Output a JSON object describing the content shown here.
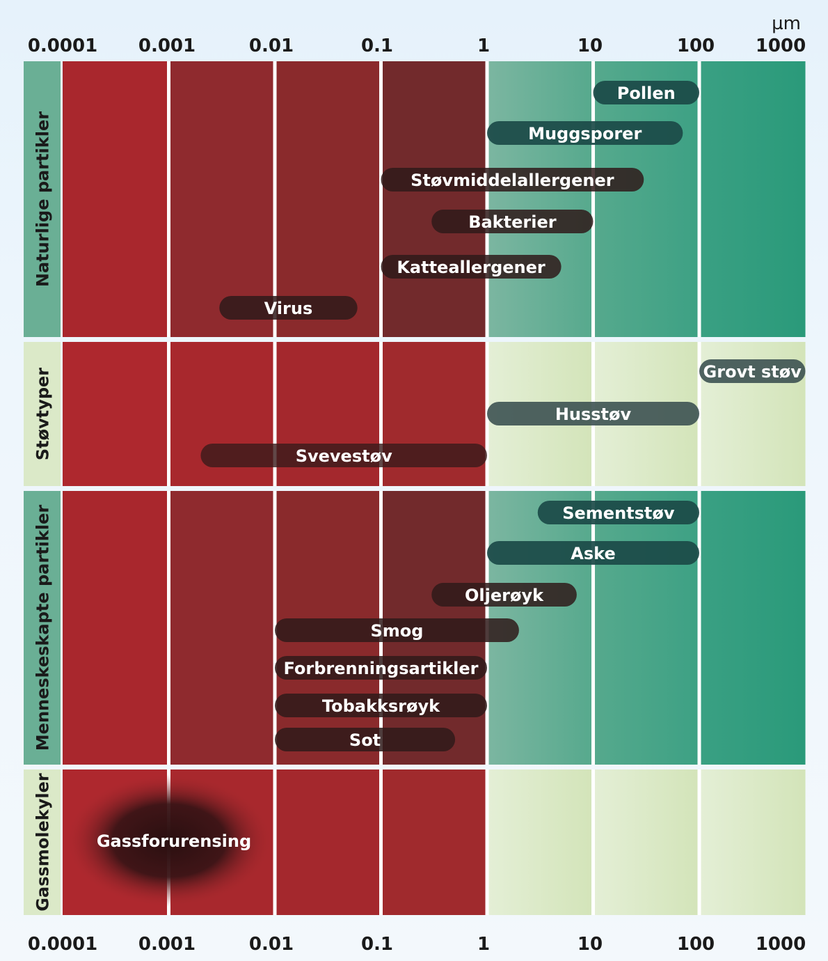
{
  "chart_data": {
    "type": "range-bar",
    "unit": "µm",
    "x_scale": "log",
    "x_ticks": [
      "0.0001",
      "0.001",
      "0.01",
      "0.1",
      "1",
      "10",
      "100",
      "1000"
    ],
    "xlim": [
      0.0001,
      1000
    ],
    "categories": [
      {
        "name": "Naturlige partikler",
        "items": [
          {
            "label": "Pollen",
            "min": 10,
            "max": 100
          },
          {
            "label": "Muggsporer",
            "min": 1,
            "max": 70
          },
          {
            "label": "Støvmiddelallergener",
            "min": 0.1,
            "max": 30
          },
          {
            "label": "Bakterier",
            "min": 0.3,
            "max": 10
          },
          {
            "label": "Katteallergener",
            "min": 0.1,
            "max": 5
          },
          {
            "label": "Virus",
            "min": 0.003,
            "max": 0.06
          }
        ]
      },
      {
        "name": "Støvtyper",
        "items": [
          {
            "label": "Grovt støv",
            "min": 100,
            "max": 1000
          },
          {
            "label": "Husstøv",
            "min": 1,
            "max": 100
          },
          {
            "label": "Svevestøv",
            "min": 0.002,
            "max": 1
          }
        ]
      },
      {
        "name": "Menneskeskapte partikler",
        "items": [
          {
            "label": "Sementstøv",
            "min": 3,
            "max": 100
          },
          {
            "label": "Aske",
            "min": 1,
            "max": 100
          },
          {
            "label": "Oljerøyk",
            "min": 0.3,
            "max": 7
          },
          {
            "label": "Smog",
            "min": 0.01,
            "max": 2
          },
          {
            "label": "Forbrenningsartikler",
            "min": 0.01,
            "max": 1
          },
          {
            "label": "Tobakksrøyk",
            "min": 0.01,
            "max": 1
          },
          {
            "label": "Sot",
            "min": 0.01,
            "max": 0.5
          }
        ]
      },
      {
        "name": "Gassmolekyler",
        "items": [
          {
            "label": "Gassforurensing",
            "min": 0.0001,
            "max": 0.01
          }
        ]
      }
    ],
    "colors": {
      "red": "#a8282d",
      "teal": "#2f9c7b",
      "light_green": "#dbe9c8",
      "bar_dark_teal": "#1d4a4a",
      "bar_dark_red": "#3a1a1a"
    }
  }
}
